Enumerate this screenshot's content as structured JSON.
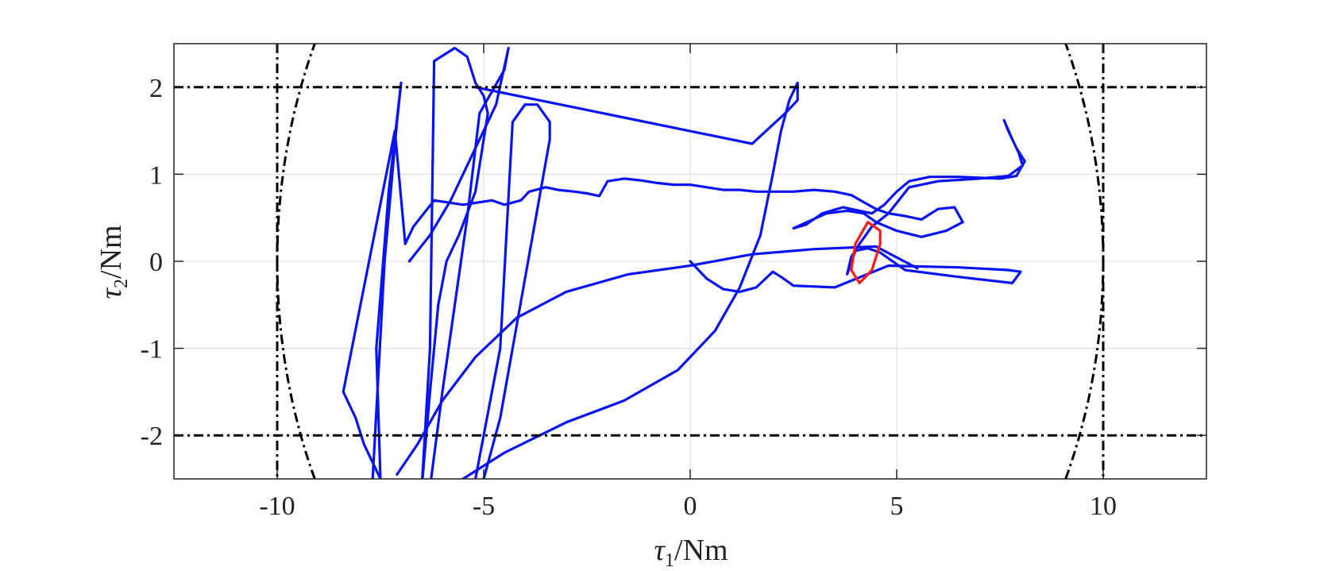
{
  "chart_data": {
    "type": "line",
    "xlabel": "τ₁/Nm",
    "ylabel": "τ₂/Nm",
    "xlabel_parts": {
      "symbol": "τ",
      "sub": "1",
      "unit": "/Nm"
    },
    "ylabel_parts": {
      "symbol": "τ",
      "sub": "2",
      "unit": "/Nm"
    },
    "xlim": [
      -12.5,
      12.5
    ],
    "ylim": [
      -2.5,
      2.5
    ],
    "xticks": [
      -10,
      -5,
      0,
      5,
      10
    ],
    "yticks": [
      -2,
      -1,
      0,
      1,
      2
    ],
    "xtick_labels": [
      "-10",
      "-5",
      "0",
      "5",
      "10"
    ],
    "ytick_labels": [
      "-2",
      "-1",
      "0",
      "1",
      "2"
    ],
    "grid": true,
    "colors": {
      "main": "#0a14f0",
      "highlight": "#ff1a1a",
      "bounds": "#000000",
      "grid": "#dcdcdc"
    },
    "series": [
      {
        "color": "#0a14f0",
        "x": [
          -7.7,
          -7.4,
          -7.1,
          -7.0,
          -7.3,
          -7.6,
          -7.5,
          -7.9,
          -8.1,
          -8.4,
          -7.15,
          -6.9,
          -6.7,
          -6.2,
          -5.5,
          -4.8,
          -4.5,
          -4.1,
          -3.9,
          -3.5,
          -3.2,
          -2.8,
          -2.5,
          -2.2,
          -2.0,
          -1.6,
          -1.2,
          -0.8,
          -0.4,
          0.0,
          0.4,
          0.8,
          1.2,
          1.6,
          2.0,
          2.5,
          3.0,
          3.5,
          3.9,
          4.2,
          4.5,
          4.8,
          5.2,
          5.6,
          6.0,
          6.4,
          6.6,
          6.2,
          5.6,
          5.0,
          4.5,
          4.2,
          3.8,
          3.3,
          2.5,
          2.8,
          3.2,
          3.7,
          4.1,
          4.4,
          4.7,
          5.0,
          5.3,
          5.8,
          6.5,
          7.5,
          7.9,
          8.1,
          7.9,
          7.7,
          7.6,
          7.8,
          7.95,
          8.05,
          7.7,
          7.0,
          6.0,
          5.3,
          4.8,
          4.4,
          4.1,
          3.9,
          3.8,
          4.0,
          4.3,
          4.6,
          5.2,
          6.5,
          7.8,
          8.0,
          7.7,
          6.5,
          4.8,
          3.5,
          2.5,
          2.2,
          2.0,
          1.6,
          1.2,
          0.8,
          0.4,
          0.0
        ],
        "y": [
          -2.6,
          0.0,
          1.6,
          2.05,
          0.8,
          -1.0,
          -2.5,
          -2.1,
          -1.8,
          -1.5,
          1.5,
          0.2,
          0.4,
          0.7,
          0.65,
          0.7,
          0.65,
          0.7,
          0.8,
          0.85,
          0.82,
          0.8,
          0.78,
          0.75,
          0.92,
          0.95,
          0.93,
          0.9,
          0.88,
          0.88,
          0.85,
          0.82,
          0.82,
          0.8,
          0.8,
          0.8,
          0.82,
          0.8,
          0.76,
          0.68,
          0.6,
          0.55,
          0.52,
          0.48,
          0.6,
          0.62,
          0.45,
          0.35,
          0.28,
          0.35,
          0.45,
          0.55,
          0.58,
          0.55,
          0.38,
          0.42,
          0.55,
          0.62,
          0.58,
          0.55,
          0.65,
          0.8,
          0.92,
          0.97,
          0.97,
          0.95,
          0.98,
          1.15,
          1.3,
          1.5,
          1.62,
          1.4,
          1.25,
          1.1,
          0.98,
          0.95,
          0.92,
          0.85,
          0.55,
          0.4,
          0.2,
          0.05,
          -0.15,
          0.12,
          0.15,
          0.1,
          -0.1,
          -0.18,
          -0.25,
          -0.12,
          -0.1,
          -0.07,
          -0.05,
          -0.3,
          -0.28,
          -0.18,
          -0.12,
          -0.3,
          -0.35,
          -0.32,
          -0.2,
          0.0
        ]
      },
      {
        "color": "#0a14f0",
        "x": [
          -6.5,
          -6.3,
          -6.2,
          -5.7,
          -5.4,
          -5.2,
          -5.0,
          -4.9,
          -5.2,
          -5.6,
          -5.9,
          -6.1,
          -6.3,
          -6.5
        ],
        "y": [
          -2.6,
          -1.0,
          2.3,
          2.45,
          2.35,
          2.05,
          1.9,
          1.7,
          0.8,
          0.3,
          0.0,
          -0.5,
          -1.5,
          -2.6
        ]
      },
      {
        "color": "#0a14f0",
        "x": [
          -6.8,
          -6.3,
          -5.8,
          -5.4,
          -5.0,
          -4.7,
          -4.4,
          -4.5,
          -4.8,
          -5.1,
          -5.4,
          -5.7,
          -6.0,
          -6.3
        ],
        "y": [
          0.0,
          0.3,
          0.7,
          1.1,
          1.5,
          1.8,
          2.45,
          2.2,
          1.95,
          1.7,
          0.5,
          -0.5,
          -1.5,
          -2.6
        ],
        "note": "secondary polyline"
      },
      {
        "color": "#0a14f0",
        "x": [
          -5.2,
          -4.6,
          -4.3,
          -4.0,
          -3.7,
          -3.4,
          -3.4,
          -3.7,
          -4.0,
          -4.3,
          -4.6,
          -5.0
        ],
        "y": [
          -2.5,
          -1.0,
          1.6,
          1.8,
          1.8,
          1.6,
          1.4,
          0.6,
          -0.2,
          -1.0,
          -1.8,
          -2.5
        ]
      },
      {
        "color": "#0a14f0",
        "x": [
          -7.1,
          -6.6,
          -6.0,
          -5.2,
          -4.2,
          -3.0,
          -1.5,
          0.0,
          1.5,
          3.0,
          4.5,
          5.5
        ],
        "y": [
          -2.45,
          -2.1,
          -1.6,
          -1.1,
          -0.65,
          -0.35,
          -0.15,
          -0.05,
          0.08,
          0.14,
          0.17,
          -0.08
        ]
      },
      {
        "color": "#0a14f0",
        "x": [
          -5.5,
          -4.5,
          -3.0,
          -1.6,
          -0.3,
          0.6,
          1.2,
          1.7,
          2.0,
          2.2,
          2.4,
          2.6,
          2.6,
          2.3,
          1.5,
          -5.2
        ],
        "y": [
          -2.5,
          -2.2,
          -1.85,
          -1.6,
          -1.25,
          -0.8,
          -0.3,
          0.3,
          1.0,
          1.5,
          1.85,
          2.05,
          1.85,
          1.7,
          1.35,
          2.0
        ]
      },
      {
        "color": "#ff1a1a",
        "x": [
          3.9,
          4.1,
          4.4,
          4.6,
          4.6,
          4.3,
          4.0,
          3.9
        ],
        "y": [
          -0.1,
          -0.25,
          -0.1,
          0.2,
          0.35,
          0.45,
          0.2,
          -0.1
        ]
      }
    ],
    "bounds": {
      "horizontal_lines": [
        2,
        -2
      ],
      "vertical_lines": [
        -10,
        10
      ],
      "curve_label": ""
    }
  }
}
